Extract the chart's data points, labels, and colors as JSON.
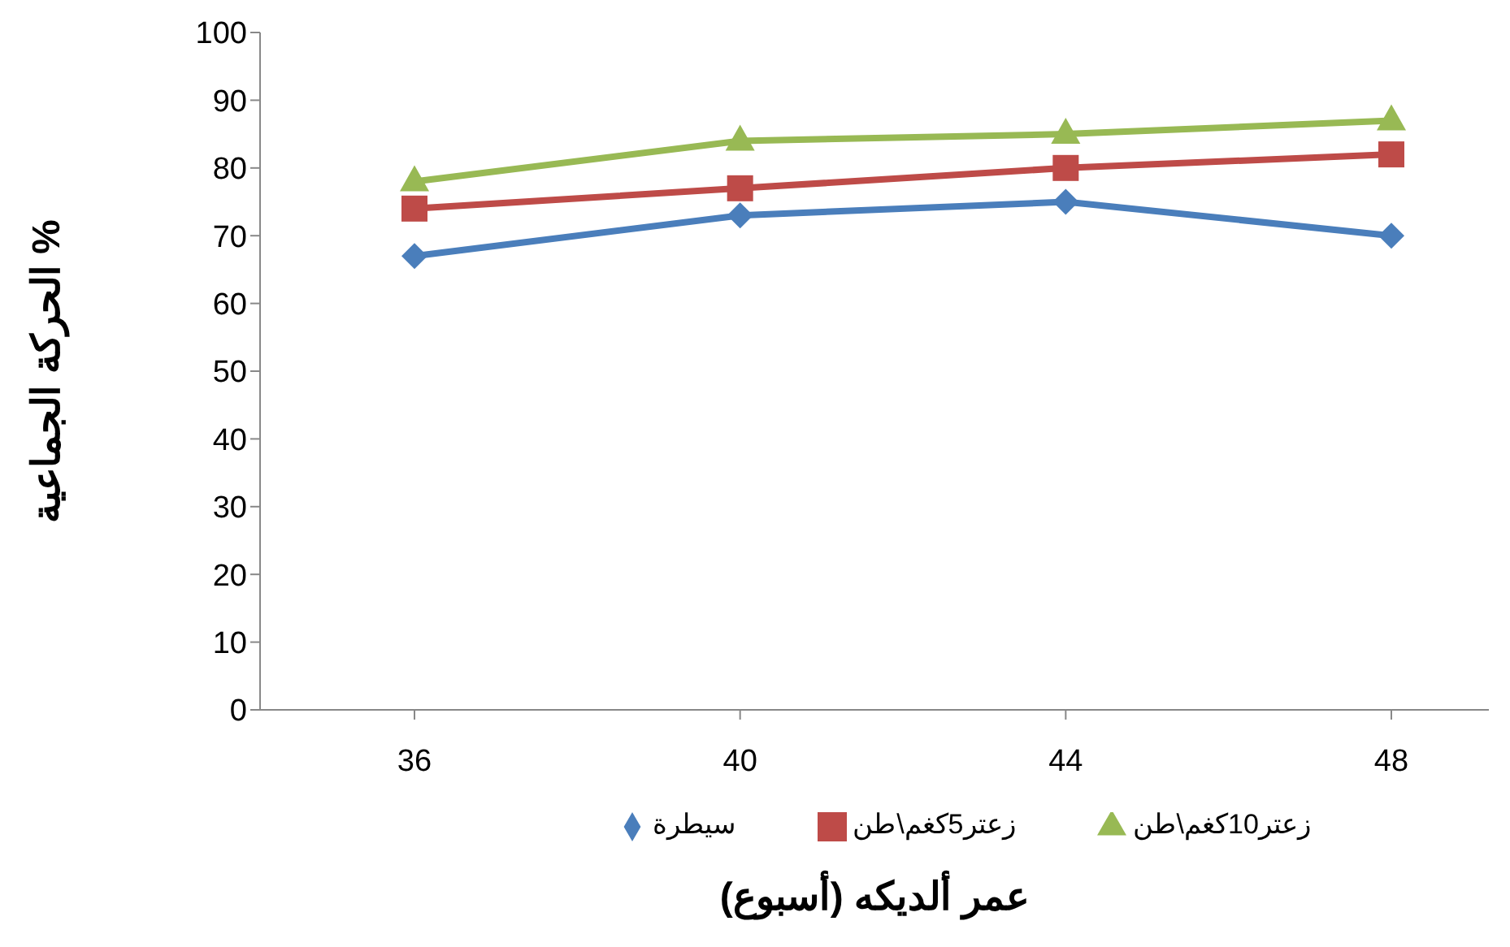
{
  "chart_data": {
    "type": "line",
    "xlabel": "عمر ألديكه (أسبوع)",
    "ylabel": "الحركة الجماعية %",
    "categories": [
      "36",
      "40",
      "44",
      "48"
    ],
    "series": [
      {
        "name": "سيطرة",
        "color": "#4a7ebb",
        "marker": "diamond",
        "values": [
          67,
          73,
          75,
          70
        ]
      },
      {
        "name": "زعتر5كغم\\طن",
        "color": "#be4b48",
        "marker": "square",
        "values": [
          74,
          77,
          80,
          82
        ]
      },
      {
        "name": "زعتر10كغم\\طن",
        "color": "#98b954",
        "marker": "triangle",
        "values": [
          78,
          84,
          85,
          87
        ]
      }
    ],
    "ylim": [
      0,
      100
    ],
    "yticks": [
      0,
      10,
      20,
      30,
      40,
      50,
      60,
      70,
      80,
      90,
      100
    ],
    "grid": false,
    "legend": "bottom"
  }
}
